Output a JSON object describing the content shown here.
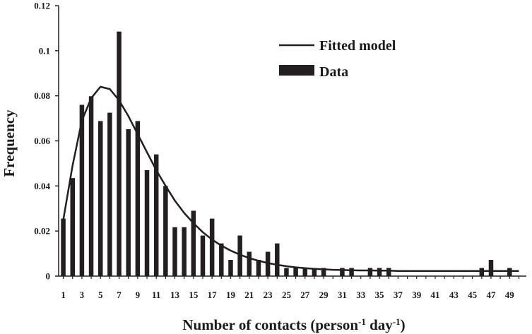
{
  "chart_data": {
    "type": "bar",
    "title": "",
    "xlabel": {
      "main": "Number of contacts (person",
      "sup1": "-1",
      "mid": " day",
      "sup2": "-1",
      "end": ")"
    },
    "ylabel": "Frequency",
    "ylim": [
      0,
      0.12
    ],
    "yticks": [
      0,
      0.02,
      0.04,
      0.06,
      0.08,
      0.1,
      0.12
    ],
    "ytick_labels": [
      "0",
      "0.02",
      "0.04",
      "0.06",
      "0.08",
      "0.1",
      "0.12"
    ],
    "xlim": [
      0.5,
      50.8
    ],
    "xtick_labels": [
      "1",
      "3",
      "5",
      "7",
      "9",
      "11",
      "13",
      "15",
      "17",
      "19",
      "21",
      "23",
      "25",
      "27",
      "29",
      "31",
      "33",
      "35",
      "37",
      "39",
      "41",
      "43",
      "45",
      "47",
      "49"
    ],
    "grid": false,
    "legend_position": "top-right",
    "colors": {
      "bar": "#231f20",
      "line": "#231f20",
      "axis": "#231f20"
    },
    "legend": [
      {
        "label": "Fitted model",
        "kind": "line"
      },
      {
        "label": "Data",
        "kind": "bar"
      }
    ],
    "series": [
      {
        "name": "Data",
        "type": "bar",
        "x": [
          1,
          2,
          3,
          4,
          5,
          6,
          7,
          8,
          9,
          10,
          11,
          12,
          13,
          14,
          15,
          16,
          17,
          18,
          19,
          20,
          21,
          22,
          23,
          24,
          25,
          26,
          27,
          28,
          29,
          30,
          31,
          32,
          33,
          34,
          35,
          36,
          37,
          38,
          39,
          40,
          41,
          42,
          43,
          44,
          45,
          46,
          47,
          48,
          49,
          50
        ],
        "values": [
          0.0255,
          0.0435,
          0.076,
          0.0798,
          0.0688,
          0.0725,
          0.1085,
          0.0652,
          0.0688,
          0.047,
          0.054,
          0.04,
          0.0217,
          0.0217,
          0.029,
          0.018,
          0.0255,
          0.0145,
          0.0072,
          0.018,
          0.0108,
          0.0072,
          0.0108,
          0.0145,
          0.0036,
          0.0036,
          0.0036,
          0.0036,
          0.0036,
          0.0,
          0.0036,
          0.0036,
          0.0,
          0.0036,
          0.0036,
          0.0036,
          0.0,
          0.0,
          0.0,
          0.0,
          0.0,
          0.0,
          0.0,
          0.0,
          0.0,
          0.0036,
          0.0072,
          0.0,
          0.0036,
          0.0
        ]
      },
      {
        "name": "Fitted model",
        "type": "line",
        "x": [
          1,
          2,
          3,
          4,
          5,
          6,
          7,
          8,
          9,
          10,
          11,
          12,
          13,
          14,
          15,
          16,
          17,
          18,
          19,
          20,
          21,
          22,
          23,
          24,
          25,
          26,
          27,
          28,
          29,
          30,
          31,
          32,
          33,
          34,
          35,
          36,
          37,
          38,
          39,
          40,
          41,
          42,
          43,
          44,
          45,
          46,
          47,
          48,
          49,
          50
        ],
        "values": [
          0.025,
          0.049,
          0.069,
          0.079,
          0.084,
          0.083,
          0.078,
          0.071,
          0.063,
          0.055,
          0.047,
          0.04,
          0.0335,
          0.028,
          0.0235,
          0.0195,
          0.0162,
          0.0135,
          0.0113,
          0.0095,
          0.008,
          0.0068,
          0.0058,
          0.005,
          0.0044,
          0.0039,
          0.0035,
          0.0032,
          0.003,
          0.0028,
          0.0027,
          0.0026,
          0.0025,
          0.0025,
          0.0024,
          0.0024,
          0.0023,
          0.0023,
          0.0023,
          0.0023,
          0.0023,
          0.0023,
          0.0023,
          0.0023,
          0.0023,
          0.0023,
          0.0023,
          0.0023,
          0.0023,
          0.0023
        ]
      }
    ]
  }
}
